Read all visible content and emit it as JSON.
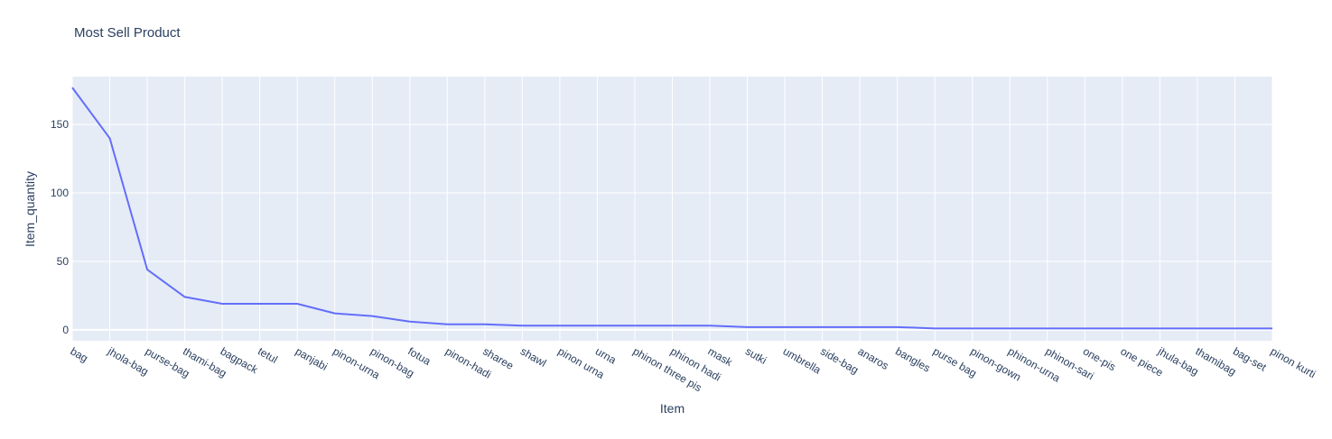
{
  "chart_data": {
    "type": "line",
    "title": "Most Sell Product",
    "xlabel": "Item",
    "ylabel": "Item_quantity",
    "categories": [
      "bag",
      "jhola-bag",
      "purse-bag",
      "thami-bag",
      "bagpack",
      "tetul",
      "panjabi",
      "pinon-urna",
      "pinon-bag",
      "fotua",
      "pinon-hadi",
      "sharee",
      "shawl",
      "pinon urna",
      "urna",
      "phinon three pis",
      "phinon hadi",
      "mask",
      "sutki",
      "umbrella",
      "side-bag",
      "anaros",
      "bangles",
      "purse bag",
      "pinon-gown",
      "phinon-urna",
      "phinon-sari",
      "one-pis",
      "one piece",
      "jhula-bag",
      "thamibag",
      "bag-set",
      "pinon kurti"
    ],
    "series": [
      {
        "values": [
          177,
          140,
          44,
          24,
          19,
          19,
          19,
          12,
          10,
          6,
          4,
          4,
          3,
          3,
          3,
          3,
          3,
          3,
          2,
          2,
          2,
          2,
          2,
          1,
          1,
          1,
          1,
          1,
          1,
          1,
          1,
          1,
          1
        ]
      }
    ],
    "yticks": [
      0,
      50,
      100,
      150
    ],
    "ylim": [
      -8,
      185
    ],
    "grid": true,
    "colors": {
      "line": "#636efa",
      "plot_bg": "#e5ecf6",
      "grid": "#ffffff",
      "text": "#2a3f5f"
    }
  }
}
